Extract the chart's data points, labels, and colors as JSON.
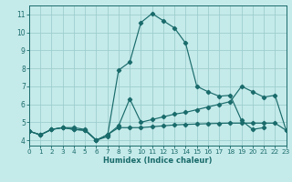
{
  "xlabel": "Humidex (Indice chaleur)",
  "bg_color": "#c5eaea",
  "grid_color": "#9ecece",
  "line_color": "#1a6b6b",
  "xlim": [
    0,
    23
  ],
  "ylim": [
    3.7,
    11.5
  ],
  "xticks": [
    0,
    1,
    2,
    3,
    4,
    5,
    6,
    7,
    8,
    9,
    10,
    11,
    12,
    13,
    14,
    15,
    16,
    17,
    18,
    19,
    20,
    21,
    22,
    23
  ],
  "yticks": [
    4,
    5,
    6,
    7,
    8,
    9,
    10,
    11
  ],
  "line_main_x": [
    0,
    1,
    2,
    3,
    4,
    5,
    6,
    7,
    8,
    9,
    10,
    11,
    12,
    13,
    14,
    15,
    16,
    17,
    18,
    19,
    20,
    21
  ],
  "line_main_y": [
    4.5,
    4.3,
    4.6,
    4.7,
    4.7,
    4.6,
    4.0,
    4.2,
    7.9,
    8.35,
    10.55,
    11.05,
    10.65,
    10.25,
    9.4,
    7.0,
    6.7,
    6.45,
    6.5,
    5.1,
    4.6,
    4.7
  ],
  "line_rise_x": [
    0,
    1,
    2,
    3,
    4,
    5,
    6,
    7,
    8,
    9,
    10,
    11,
    12,
    13,
    14,
    15,
    16,
    17,
    18,
    19,
    20,
    21,
    22,
    23
  ],
  "line_rise_y": [
    4.5,
    4.3,
    4.6,
    4.7,
    4.6,
    4.55,
    4.0,
    4.3,
    4.8,
    6.3,
    5.0,
    5.15,
    5.3,
    5.45,
    5.55,
    5.7,
    5.85,
    6.0,
    6.15,
    7.0,
    6.7,
    6.4,
    6.5,
    4.55
  ],
  "line_flat_x": [
    0,
    1,
    2,
    3,
    4,
    5,
    6,
    7,
    8,
    9,
    10,
    11,
    12,
    13,
    14,
    15,
    16,
    17,
    18,
    19,
    20,
    21,
    22,
    23
  ],
  "line_flat_y": [
    4.5,
    4.3,
    4.6,
    4.7,
    4.6,
    4.55,
    4.0,
    4.3,
    4.7,
    4.7,
    4.7,
    4.75,
    4.8,
    4.85,
    4.88,
    4.9,
    4.92,
    4.94,
    4.95,
    4.95,
    4.95,
    4.95,
    4.95,
    4.55
  ],
  "marker": "D",
  "marker_size": 2.2,
  "linewidth": 0.85
}
